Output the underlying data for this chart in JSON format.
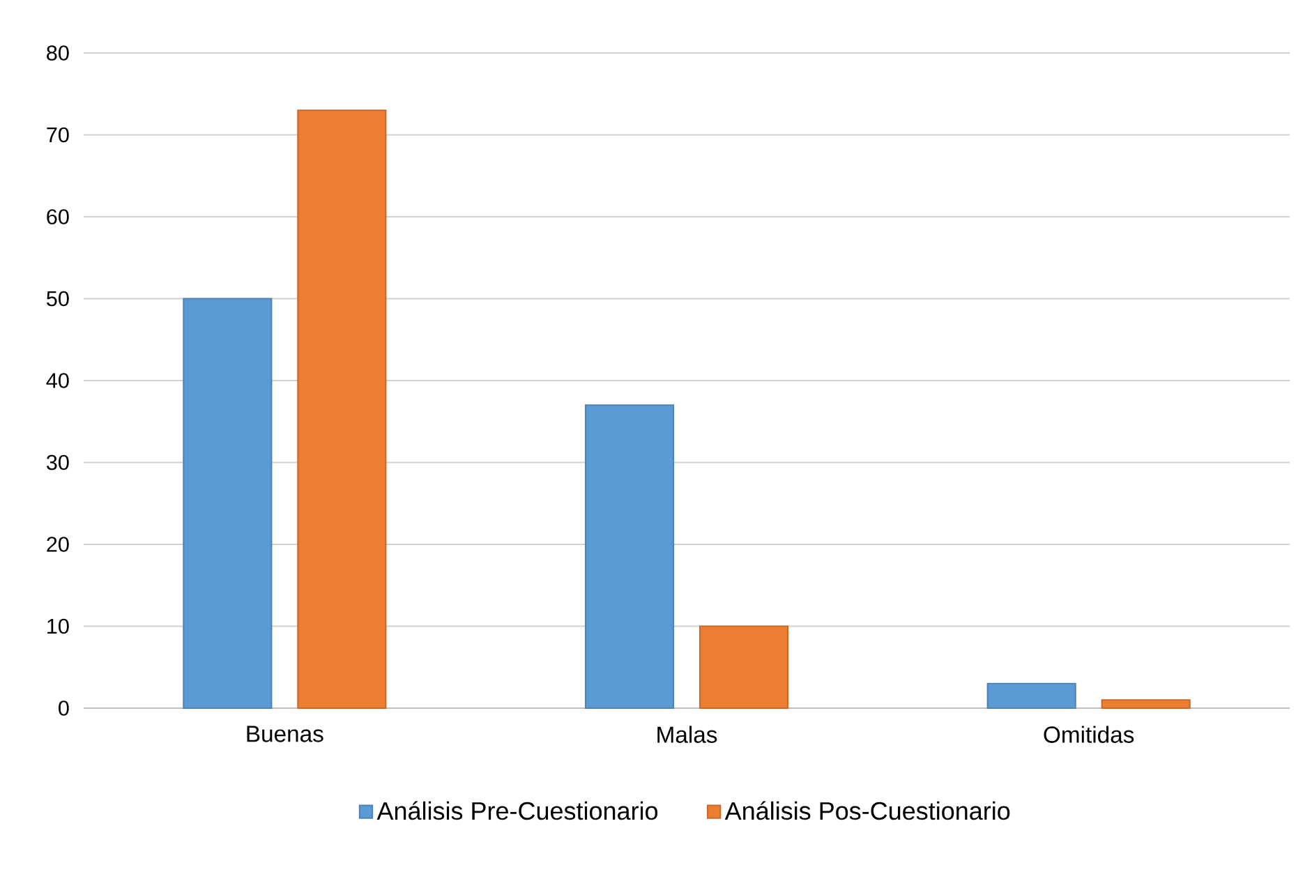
{
  "chart_data": {
    "type": "bar",
    "categories": [
      "Buenas",
      "Malas",
      "Omitidas"
    ],
    "series": [
      {
        "name": "Análisis Pre-Cuestionario",
        "color": "#5b9bd5",
        "values": [
          50,
          37,
          3
        ]
      },
      {
        "name": "Análisis Pos-Cuestionario",
        "color": "#ed7d31",
        "values": [
          73,
          10,
          1
        ]
      }
    ],
    "ylim": [
      0,
      80
    ],
    "yticks": [
      0,
      10,
      20,
      30,
      40,
      50,
      60,
      70,
      80
    ],
    "grid": "y",
    "legend": "bottom"
  }
}
